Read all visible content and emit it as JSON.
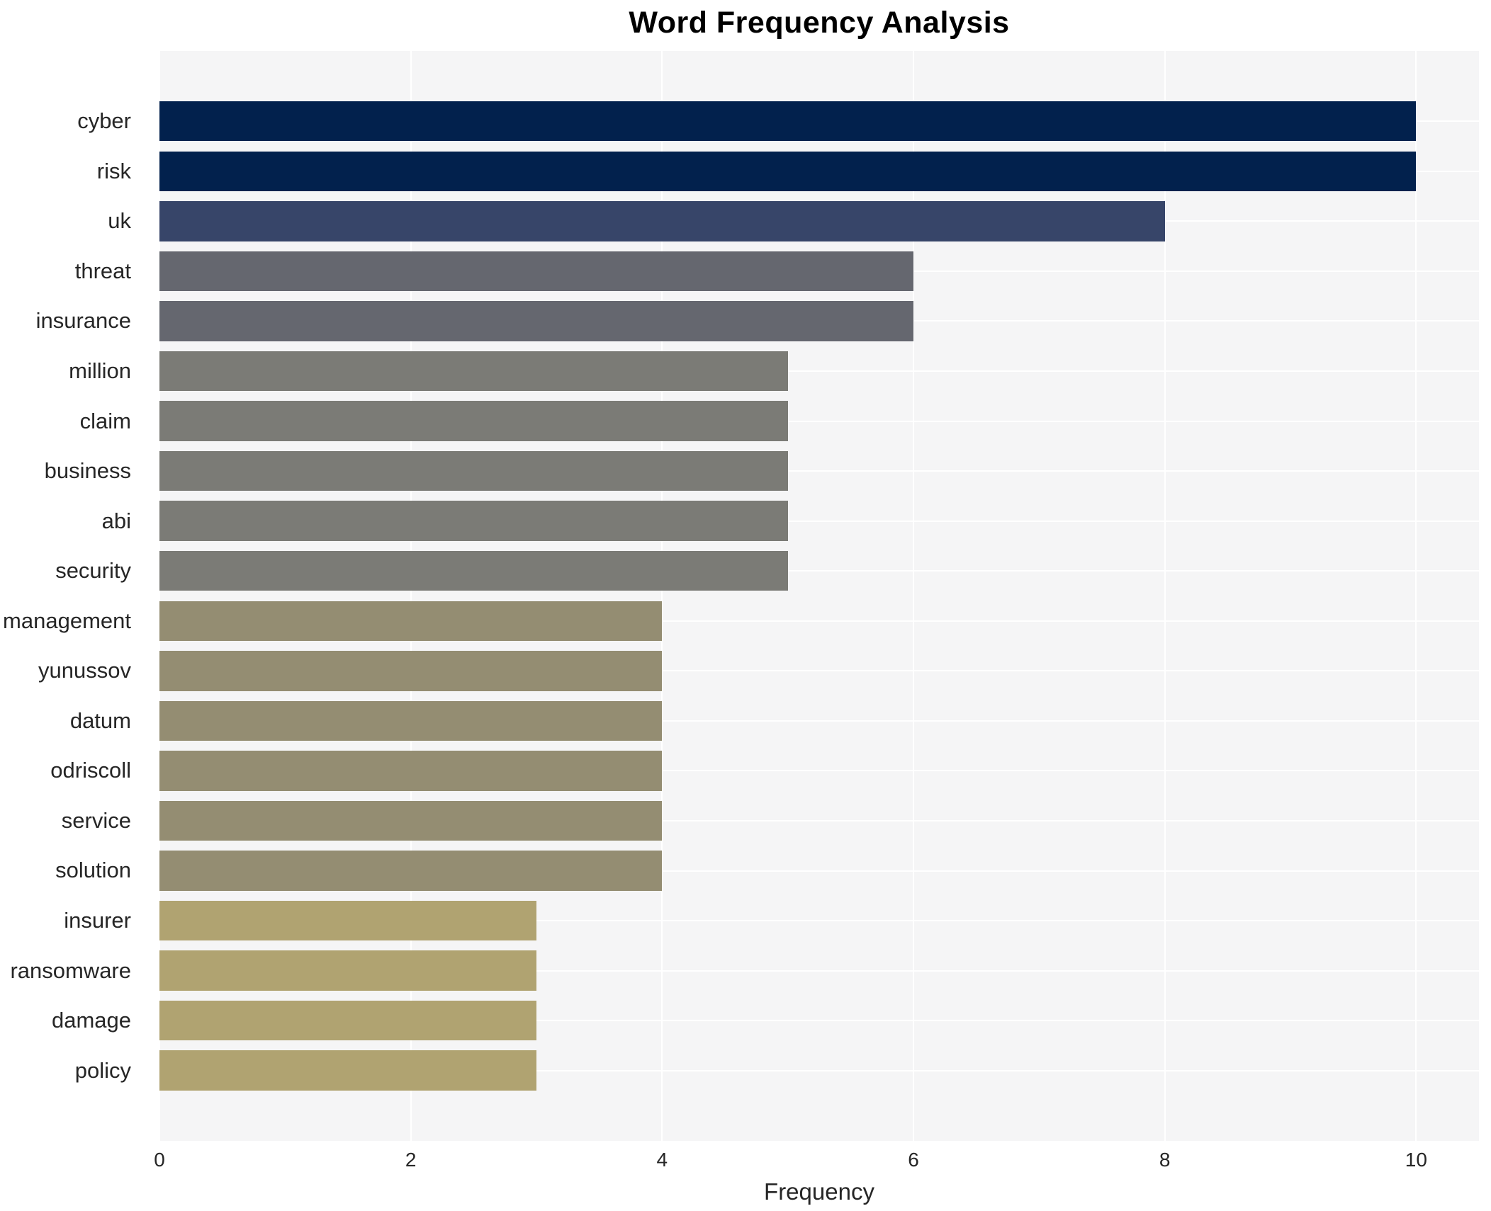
{
  "chart_data": {
    "type": "bar",
    "orientation": "horizontal",
    "title": "Word Frequency Analysis",
    "xlabel": "Frequency",
    "ylabel": "",
    "categories": [
      "cyber",
      "risk",
      "uk",
      "threat",
      "insurance",
      "million",
      "claim",
      "business",
      "abi",
      "security",
      "management",
      "yunussov",
      "datum",
      "odriscoll",
      "service",
      "solution",
      "insurer",
      "ransomware",
      "damage",
      "policy"
    ],
    "values": [
      10,
      10,
      8,
      6,
      6,
      5,
      5,
      5,
      5,
      5,
      4,
      4,
      4,
      4,
      4,
      4,
      3,
      3,
      3,
      3
    ],
    "bar_colors": [
      "#02214d",
      "#02214d",
      "#374569",
      "#65676f",
      "#65676f",
      "#7b7b76",
      "#7b7b76",
      "#7b7b76",
      "#7b7b76",
      "#7b7b76",
      "#948d72",
      "#948d72",
      "#948d72",
      "#948d72",
      "#948d72",
      "#948d72",
      "#b0a371",
      "#b0a371",
      "#b0a371",
      "#b0a371"
    ],
    "xlim": [
      0,
      10.5
    ],
    "xticks": [
      0,
      2,
      4,
      6,
      8,
      10
    ],
    "grid": true,
    "legend_position": "none",
    "plot_background": "#f5f5f6",
    "figure_background": "#ffffff",
    "gridline_color": "#ffffff",
    "bar_fraction_of_band": 0.8
  }
}
